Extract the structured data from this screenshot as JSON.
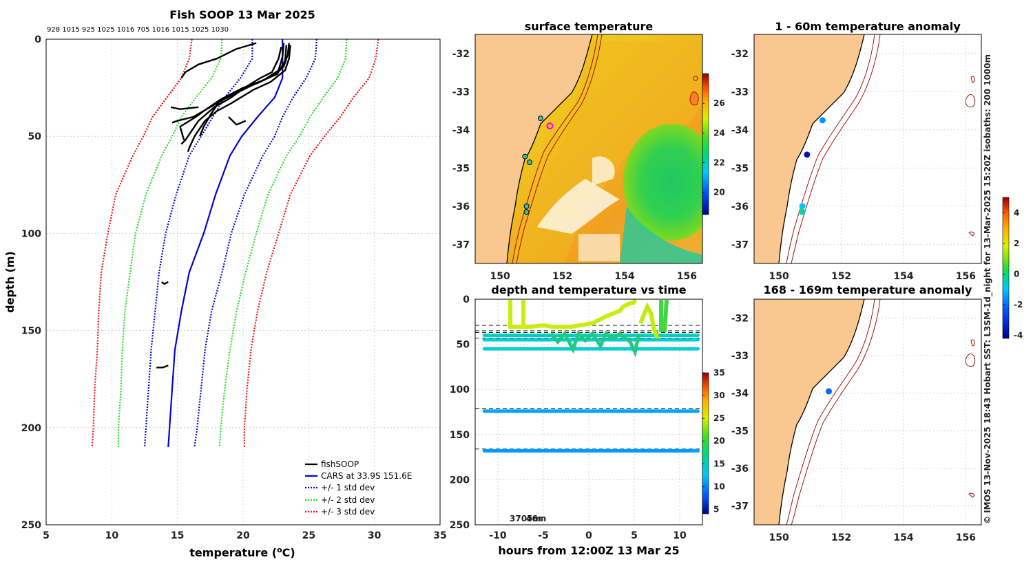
{
  "chart_data": [
    {
      "type": "line",
      "title": "Fish SOOP 13 Mar 2025",
      "xlabel": "temperature (°C)",
      "ylabel": "depth (m)",
      "xlim": [
        5,
        35
      ],
      "ylim": [
        250,
        0
      ],
      "xticks": [
        "5",
        "10",
        "15",
        "20",
        "25",
        "30",
        "35"
      ],
      "yticks": [
        "0",
        "50",
        "100",
        "150",
        "200",
        "250"
      ],
      "top_labels": "928 1015 925 1025 1016 705 1016 1015 1025 1030",
      "legend": [
        "fishSOOP",
        "CARS at 33.9S 151.6E",
        "+/- 1 std dev",
        "+/- 2 std dev",
        "+/- 3 std dev"
      ],
      "legend_location": "bottom-right",
      "series": [
        {
          "name": "CARS at 33.9S 151.6E",
          "color": "#0000e0",
          "points": [
            [
              23,
              0
            ],
            [
              23,
              20
            ],
            [
              22.4,
              30
            ],
            [
              21.1,
              40
            ],
            [
              19.9,
              50
            ],
            [
              19,
              60
            ],
            [
              17.9,
              80
            ],
            [
              17,
              100
            ],
            [
              15.9,
              120
            ],
            [
              15.3,
              140
            ],
            [
              14.8,
              160
            ],
            [
              14.6,
              180
            ],
            [
              14.4,
              200
            ],
            [
              14.3,
              210
            ]
          ]
        },
        {
          "name": "CARS -1 std dev",
          "color": "#0000e0",
          "dashed": true,
          "points": [
            [
              20.7,
              0
            ],
            [
              20.7,
              10
            ],
            [
              19.8,
              20
            ],
            [
              18.6,
              30
            ],
            [
              17.7,
              40
            ],
            [
              16.8,
              50
            ],
            [
              15.9,
              60
            ],
            [
              14.9,
              80
            ],
            [
              14.1,
              100
            ],
            [
              13.6,
              120
            ],
            [
              13.3,
              140
            ],
            [
              13,
              160
            ],
            [
              12.8,
              180
            ],
            [
              12.6,
              200
            ],
            [
              12.5,
              210
            ]
          ]
        },
        {
          "name": "CARS +1 std dev",
          "color": "#0000e0",
          "dashed": true,
          "points": [
            [
              25.6,
              0
            ],
            [
              25.5,
              10
            ],
            [
              24.8,
              20
            ],
            [
              23.8,
              30
            ],
            [
              23,
              40
            ],
            [
              22.4,
              50
            ],
            [
              21.5,
              60
            ],
            [
              20.1,
              80
            ],
            [
              19.1,
              100
            ],
            [
              18.4,
              120
            ],
            [
              17.6,
              140
            ],
            [
              17.1,
              160
            ],
            [
              16.8,
              180
            ],
            [
              16.5,
              200
            ],
            [
              16.3,
              210
            ]
          ]
        },
        {
          "name": "CARS -2 std dev",
          "color": "#22dd22",
          "dashed": true,
          "points": [
            [
              18.4,
              0
            ],
            [
              18.3,
              10
            ],
            [
              17.6,
              20
            ],
            [
              16.4,
              30
            ],
            [
              15.3,
              40
            ],
            [
              14.6,
              50
            ],
            [
              13.8,
              60
            ],
            [
              12.6,
              80
            ],
            [
              11.8,
              100
            ],
            [
              11.4,
              120
            ],
            [
              11,
              140
            ],
            [
              10.8,
              160
            ],
            [
              10.7,
              180
            ],
            [
              10.5,
              200
            ],
            [
              10.5,
              210
            ]
          ]
        },
        {
          "name": "CARS +2 std dev",
          "color": "#22dd22",
          "dashed": true,
          "points": [
            [
              27.9,
              0
            ],
            [
              27.8,
              10
            ],
            [
              27.2,
              20
            ],
            [
              26.1,
              30
            ],
            [
              25.1,
              40
            ],
            [
              24.3,
              50
            ],
            [
              23.3,
              60
            ],
            [
              21.9,
              80
            ],
            [
              21,
              100
            ],
            [
              20.2,
              120
            ],
            [
              19.5,
              140
            ],
            [
              19,
              160
            ],
            [
              18.6,
              180
            ],
            [
              18.3,
              200
            ],
            [
              18.2,
              210
            ]
          ]
        },
        {
          "name": "CARS -3 std dev",
          "color": "#ee1111",
          "dashed": true,
          "points": [
            [
              16.1,
              0
            ],
            [
              15.9,
              10
            ],
            [
              15.3,
              20
            ],
            [
              14.2,
              30
            ],
            [
              13.1,
              40
            ],
            [
              12.4,
              50
            ],
            [
              11.6,
              60
            ],
            [
              10.3,
              80
            ],
            [
              9.7,
              100
            ],
            [
              9.2,
              120
            ],
            [
              9,
              140
            ],
            [
              8.9,
              160
            ],
            [
              8.7,
              180
            ],
            [
              8.6,
              200
            ],
            [
              8.5,
              210
            ]
          ]
        },
        {
          "name": "CARS +3 std dev",
          "color": "#ee1111",
          "dashed": true,
          "points": [
            [
              30.3,
              0
            ],
            [
              30.1,
              10
            ],
            [
              29.6,
              20
            ],
            [
              28.4,
              30
            ],
            [
              27.4,
              40
            ],
            [
              26.2,
              50
            ],
            [
              25.1,
              60
            ],
            [
              23.6,
              80
            ],
            [
              22.7,
              100
            ],
            [
              21.8,
              120
            ],
            [
              21.1,
              140
            ],
            [
              20.6,
              160
            ],
            [
              20.3,
              180
            ],
            [
              20.1,
              200
            ],
            [
              20.1,
              210
            ]
          ]
        },
        {
          "name": "fishSOOP",
          "color": "#000000",
          "profiles": [
            [
              [
                21,
                2
              ],
              [
                19.5,
                5
              ],
              [
                18,
                10
              ],
              [
                16.6,
                13
              ],
              [
                15.6,
                17
              ],
              [
                15.3,
                20
              ]
            ],
            [
              [
                23.5,
                2
              ],
              [
                23.4,
                8
              ],
              [
                23.1,
                14
              ],
              [
                22.5,
                18
              ],
              [
                21.3,
                22
              ],
              [
                19.5,
                27
              ],
              [
                18,
                33
              ],
              [
                16.2,
                40
              ],
              [
                15,
                42
              ],
              [
                14.6,
                43
              ]
            ],
            [
              [
                23.1,
                2
              ],
              [
                23,
                9
              ],
              [
                22.7,
                16
              ],
              [
                21.6,
                21
              ],
              [
                20,
                25
              ],
              [
                18.3,
                31
              ],
              [
                17.2,
                36
              ],
              [
                16.4,
                40
              ],
              [
                15.2,
                45
              ],
              [
                15.5,
                52
              ]
            ],
            [
              [
                23.6,
                3
              ],
              [
                23.5,
                10
              ],
              [
                23.2,
                16
              ],
              [
                22.1,
                22
              ],
              [
                20.8,
                26
              ],
              [
                19.1,
                33
              ],
              [
                18,
                37
              ],
              [
                17.1,
                42
              ],
              [
                16.3,
                50
              ],
              [
                15.9,
                56
              ],
              [
                15.8,
                58
              ]
            ],
            [
              [
                22.9,
                4
              ],
              [
                22.7,
                10
              ],
              [
                22.2,
                17
              ],
              [
                21.3,
                20
              ],
              [
                20.1,
                25
              ],
              [
                19.1,
                30
              ],
              [
                17.8,
                35
              ],
              [
                16.6,
                42
              ],
              [
                15.6,
                52
              ],
              [
                15.3,
                54
              ]
            ],
            [
              [
                23.3,
                3
              ],
              [
                23.2,
                11
              ],
              [
                22.6,
                18
              ],
              [
                21.2,
                22
              ],
              [
                19.4,
                28
              ],
              [
                18.2,
                32
              ],
              [
                17.6,
                38
              ],
              [
                17,
                45
              ],
              [
                16.7,
                50
              ]
            ],
            [
              [
                14.3,
                125
              ],
              [
                14,
                126
              ],
              [
                13.8,
                125
              ]
            ],
            [
              [
                13.4,
                169
              ],
              [
                13.9,
                169
              ],
              [
                14.3,
                168
              ]
            ],
            [
              [
                14.5,
                35
              ],
              [
                15.2,
                36
              ],
              [
                16.6,
                35
              ]
            ],
            [
              [
                18.9,
                40
              ],
              [
                19.5,
                44
              ],
              [
                20.2,
                42
              ]
            ]
          ]
        }
      ]
    },
    {
      "type": "heatmap",
      "title": "surface temperature",
      "xlim": [
        149.2,
        156.5
      ],
      "ylim": [
        -37.5,
        -31.5
      ],
      "xticks": [
        "150",
        "152",
        "154",
        "156"
      ],
      "yticks": [
        "-32",
        "-33",
        "-34",
        "-35",
        "-36",
        "-37"
      ],
      "colorbar": {
        "min": 18.5,
        "max": 28,
        "ticks": [
          "20",
          "22",
          "24",
          "26"
        ]
      },
      "markers": [
        {
          "lon": 151.3,
          "lat": -33.7,
          "kind": "station"
        },
        {
          "lon": 150.8,
          "lat": -34.7,
          "kind": "station"
        },
        {
          "lon": 150.95,
          "lat": -34.85,
          "kind": "station"
        },
        {
          "lon": 150.85,
          "lat": -36.0,
          "kind": "station"
        },
        {
          "lon": 150.85,
          "lat": -36.15,
          "kind": "station"
        },
        {
          "lon": 151.6,
          "lat": -33.9,
          "kind": "current"
        }
      ]
    },
    {
      "type": "scatter",
      "title": "depth and temperature vs time",
      "xlabel": "hours from 12:00Z 13 Mar 25",
      "xlim": [
        -12.5,
        12.5
      ],
      "ylim": [
        250,
        0
      ],
      "xticks": [
        "-10",
        "-5",
        "0",
        "5",
        "10"
      ],
      "yticks": [
        "0",
        "50",
        "100",
        "150",
        "200",
        "250"
      ],
      "annotation": "3705m",
      "annotation_overlap": "46m",
      "colorbar": {
        "min": 4,
        "max": 35,
        "ticks": [
          "5",
          "10",
          "15",
          "20",
          "25",
          "30",
          "35"
        ]
      },
      "reference_depths": [
        29,
        35,
        37,
        43,
        121,
        166
      ],
      "tracks": [
        {
          "depth": 55,
          "temp": 17,
          "x": [
            -11.5,
            12
          ]
        },
        {
          "depth": 45,
          "temp": 17,
          "x": [
            -11.5,
            12
          ]
        },
        {
          "depth": 40,
          "temp": 17.5,
          "x": [
            -11.5,
            12
          ]
        },
        {
          "depth": 124,
          "temp": 14.5,
          "x": [
            -11.5,
            12
          ]
        },
        {
          "depth": 168,
          "temp": 14,
          "x": [
            -11.5,
            12
          ]
        }
      ]
    },
    {
      "type": "scatter",
      "title": "1 - 60m temperature anomaly",
      "xlim": [
        149.2,
        156.5
      ],
      "ylim": [
        -37.5,
        -31.5
      ],
      "xticks": [
        "150",
        "152",
        "154",
        "156"
      ],
      "yticks": [
        "-32",
        "-33",
        "-34",
        "-35",
        "-36",
        "-37"
      ],
      "points": [
        {
          "lon": 151.4,
          "lat": -33.75,
          "anomaly": -1.6
        },
        {
          "lon": 150.9,
          "lat": -34.65,
          "anomaly": -3.8
        },
        {
          "lon": 150.75,
          "lat": -36.0,
          "anomaly": -1.1
        },
        {
          "lon": 150.75,
          "lat": -36.15,
          "anomaly": -0.3
        }
      ]
    },
    {
      "type": "scatter",
      "title": "168 - 169m temperature anomaly",
      "xlim": [
        149.2,
        156.5
      ],
      "ylim": [
        -37.5,
        -31.5
      ],
      "xticks": [
        "150",
        "152",
        "154",
        "156"
      ],
      "yticks": [
        "-32",
        "-33",
        "-34",
        "-35",
        "-36",
        "-37"
      ],
      "colorbar": {
        "min": -4.2,
        "max": 5,
        "ticks": [
          "-4",
          "-2",
          "0",
          "2",
          "4"
        ]
      },
      "points": [
        {
          "lon": 151.6,
          "lat": -33.95,
          "anomaly": -2.1
        }
      ]
    }
  ],
  "footer": "© IMOS 13-Nov-2025 18:43 Hobart SST: L3SM-1d_night for 13-Mar-2025 15:20Z isobaths: 200  1000m",
  "colors": {
    "land": "#f9c790",
    "isobath": "#a01010",
    "coast": "#000000"
  }
}
